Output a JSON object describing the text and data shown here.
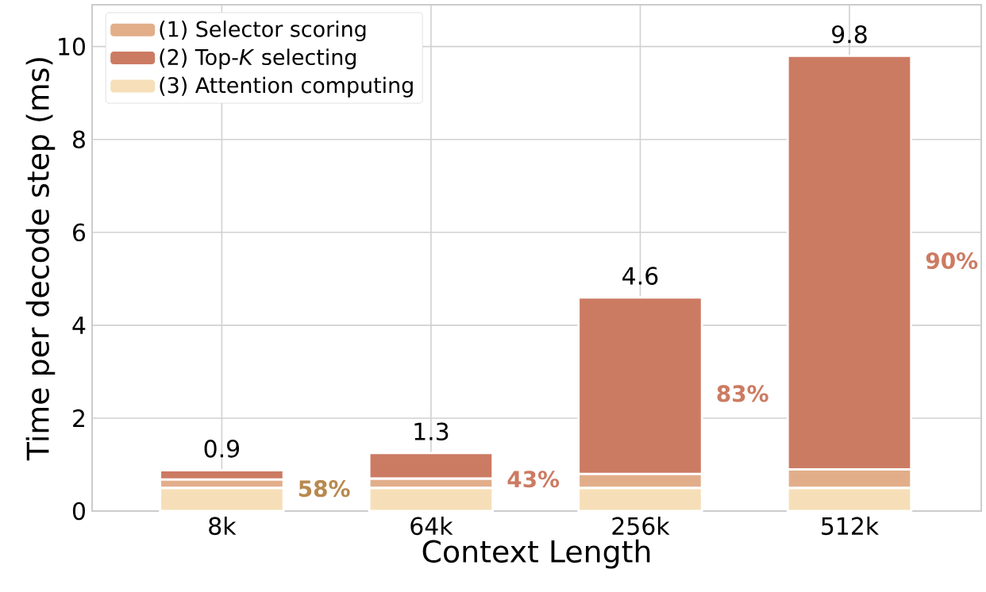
{
  "chart_data": {
    "type": "bar",
    "stacked": true,
    "xlabel": "Context Length",
    "ylabel": "Time per decode step (ms)",
    "categories": [
      "8k",
      "64k",
      "256k",
      "512k"
    ],
    "series": [
      {
        "name": "(3) Attention computing",
        "color": "#f6dfb8",
        "values": [
          0.5,
          0.5,
          0.5,
          0.5
        ]
      },
      {
        "name": "(1) Selector scoring",
        "color": "#e2ae8a",
        "values": [
          0.18,
          0.2,
          0.3,
          0.4
        ]
      },
      {
        "name": "(2) Top-*K* selecting",
        "color": "#cc7b63",
        "values": [
          0.2,
          0.55,
          3.8,
          8.9
        ]
      }
    ],
    "totals": [
      "0.9",
      "1.3",
      "4.6",
      "9.8"
    ],
    "annotations": [
      "58%",
      "43%",
      "83%",
      "90%"
    ],
    "ylim": [
      0,
      10.9
    ],
    "yticks": [
      0,
      2,
      4,
      6,
      8,
      10
    ],
    "grid": true,
    "legend": "top left"
  }
}
